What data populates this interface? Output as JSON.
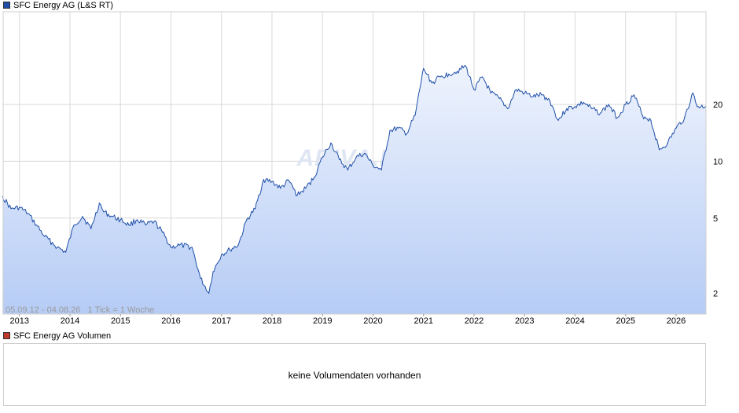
{
  "price_legend": {
    "label": "SFC Energy AG (L&S RT)",
    "color": "#1f4fa8"
  },
  "volume_legend": {
    "label": "SFC Energy AG Volumen",
    "color": "#c0392b"
  },
  "volume_panel": {
    "message": "keine Volumendaten vorhanden"
  },
  "info_text": "05.09.12 - 04.08.26   1 Tick = 1 Woche",
  "watermark": "ARIVA.DE",
  "colors": {
    "line": "#1f4fa8",
    "fill_top": "#eef3fd",
    "fill_bottom": "#b6ccf5",
    "grid": "#d9d9d9"
  },
  "chart_data": {
    "type": "area",
    "title": "SFC Energy AG (L&S RT)",
    "y_scale": "log",
    "ylim": [
      1.55,
      62
    ],
    "y_ticks": [
      2,
      5,
      10,
      20
    ],
    "x_ticks": [
      "2013",
      "2014",
      "2015",
      "2016",
      "2017",
      "2018",
      "2019",
      "2020",
      "2021",
      "2022",
      "2023",
      "2024",
      "2025",
      "2026"
    ],
    "x_range": [
      "05.09.12",
      "04.08.26"
    ],
    "grid": true,
    "series": [
      {
        "name": "SFC Energy AG (L&S RT)",
        "points": [
          [
            "2012-09",
            6.5
          ],
          [
            "2012-11",
            5.6
          ],
          [
            "2013-01",
            5.7
          ],
          [
            "2013-03",
            5.3
          ],
          [
            "2013-05",
            4.6
          ],
          [
            "2013-07",
            4.0
          ],
          [
            "2013-10",
            3.5
          ],
          [
            "2013-12",
            3.3
          ],
          [
            "2014-02",
            4.6
          ],
          [
            "2014-04",
            5.1
          ],
          [
            "2014-06",
            4.4
          ],
          [
            "2014-08",
            6.0
          ],
          [
            "2014-09",
            5.4
          ],
          [
            "2014-11",
            5.1
          ],
          [
            "2015-01",
            4.9
          ],
          [
            "2015-03",
            4.6
          ],
          [
            "2015-05",
            4.9
          ],
          [
            "2015-07",
            4.6
          ],
          [
            "2015-09",
            4.8
          ],
          [
            "2015-11",
            4.2
          ],
          [
            "2016-01",
            3.5
          ],
          [
            "2016-03",
            3.6
          ],
          [
            "2016-06",
            3.5
          ],
          [
            "2016-08",
            2.4
          ],
          [
            "2016-10",
            2.0
          ],
          [
            "2016-11",
            2.6
          ],
          [
            "2017-01",
            3.2
          ],
          [
            "2017-03",
            3.4
          ],
          [
            "2017-05",
            3.6
          ],
          [
            "2017-07",
            4.9
          ],
          [
            "2017-09",
            5.6
          ],
          [
            "2017-11",
            8.0
          ],
          [
            "2018-01",
            7.8
          ],
          [
            "2018-03",
            7.2
          ],
          [
            "2018-05",
            7.9
          ],
          [
            "2018-07",
            6.6
          ],
          [
            "2018-09",
            7.2
          ],
          [
            "2018-11",
            8.2
          ],
          [
            "2019-01",
            10.5
          ],
          [
            "2019-03",
            12.5
          ],
          [
            "2019-05",
            10.2
          ],
          [
            "2019-07",
            9.0
          ],
          [
            "2019-09",
            10.5
          ],
          [
            "2019-11",
            11.0
          ],
          [
            "2020-01",
            9.5
          ],
          [
            "2020-03",
            9.0
          ],
          [
            "2020-05",
            14.5
          ],
          [
            "2020-07",
            15.0
          ],
          [
            "2020-09",
            14.0
          ],
          [
            "2020-11",
            17.5
          ],
          [
            "2021-01",
            31.0
          ],
          [
            "2021-03",
            26.0
          ],
          [
            "2021-05",
            28.0
          ],
          [
            "2021-07",
            29.0
          ],
          [
            "2021-09",
            30.0
          ],
          [
            "2021-11",
            32.0
          ],
          [
            "2022-01",
            24.0
          ],
          [
            "2022-03",
            28.0
          ],
          [
            "2022-05",
            23.0
          ],
          [
            "2022-07",
            21.5
          ],
          [
            "2022-09",
            19.0
          ],
          [
            "2022-11",
            24.0
          ],
          [
            "2023-01",
            23.0
          ],
          [
            "2023-03",
            22.0
          ],
          [
            "2023-05",
            22.5
          ],
          [
            "2023-07",
            21.0
          ],
          [
            "2023-09",
            16.5
          ],
          [
            "2023-11",
            19.0
          ],
          [
            "2024-01",
            19.5
          ],
          [
            "2024-03",
            20.5
          ],
          [
            "2024-05",
            19.0
          ],
          [
            "2024-07",
            18.0
          ],
          [
            "2024-09",
            20.0
          ],
          [
            "2024-11",
            17.0
          ],
          [
            "2025-01",
            20.0
          ],
          [
            "2025-03",
            22.5
          ],
          [
            "2025-05",
            17.5
          ],
          [
            "2025-07",
            16.5
          ],
          [
            "2025-09",
            11.5
          ],
          [
            "2025-11",
            12.5
          ],
          [
            "2026-01",
            15.0
          ],
          [
            "2026-03",
            17.0
          ],
          [
            "2026-05",
            23.0
          ],
          [
            "2026-06",
            19.5
          ],
          [
            "2026-08",
            19.5
          ]
        ]
      }
    ]
  }
}
